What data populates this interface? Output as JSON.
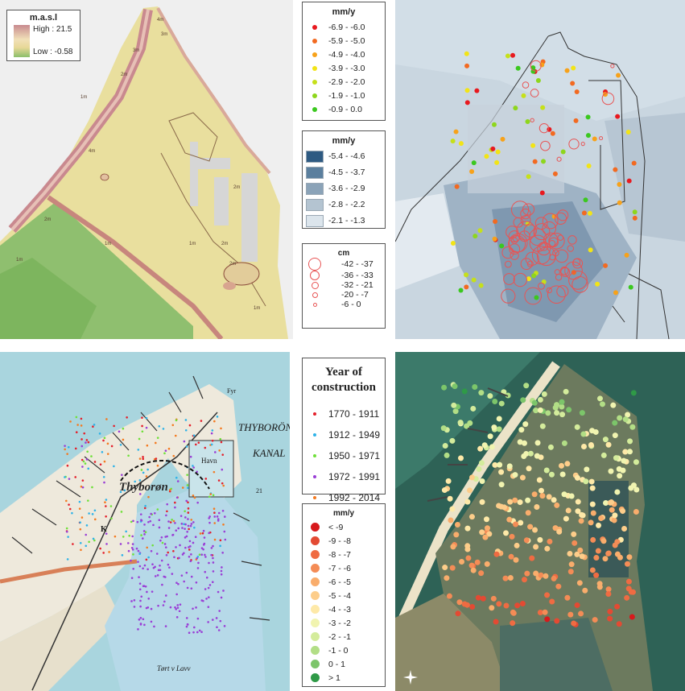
{
  "elevation_legend": {
    "title": "m.a.s.l",
    "high": "High : 21.5",
    "low": "Low : -0.58"
  },
  "velocity_points_legend": {
    "title": "mm/y",
    "items": [
      {
        "label": "-6.9 - -6.0",
        "color": "#e8191f"
      },
      {
        "label": "-5.9 - -5.0",
        "color": "#f26a21"
      },
      {
        "label": "-4.9 - -4.0",
        "color": "#f7a21a"
      },
      {
        "label": "-3.9 - -3.0",
        "color": "#f2e416"
      },
      {
        "label": "-2.9 - -2.0",
        "color": "#c6e01a"
      },
      {
        "label": "-1.9 - -1.0",
        "color": "#8ed61c"
      },
      {
        "label": "-0.9 - 0.0",
        "color": "#3bc81f"
      }
    ]
  },
  "velocity_surface_legend": {
    "title": "mm/y",
    "items": [
      {
        "label": "-5.4 - -4.6",
        "color": "#2e5a82"
      },
      {
        "label": "-4.5 - -3.7",
        "color": "#5b7f9e"
      },
      {
        "label": "-3.6 - -2.9",
        "color": "#8ba3b8"
      },
      {
        "label": "-2.8 - -2.2",
        "color": "#b4c4d1"
      },
      {
        "label": "-2.1 - -1.3",
        "color": "#dce5ec"
      }
    ]
  },
  "settlement_legend": {
    "title": "cm",
    "items": [
      {
        "label": "-42 - -37"
      },
      {
        "label": "-36 - -33"
      },
      {
        "label": "-32 - -21"
      },
      {
        "label": "-20 - -7"
      },
      {
        "label": "-6 - 0"
      }
    ]
  },
  "construction_legend": {
    "title": "Year of construction",
    "items": [
      {
        "label": "1770 - 1911",
        "color": "#e4202b"
      },
      {
        "label": "1912 - 1949",
        "color": "#2fb3e8"
      },
      {
        "label": "1950 - 1971",
        "color": "#6fe03a"
      },
      {
        "label": "1972 - 1991",
        "color": "#9a3fd6"
      },
      {
        "label": "1992 - 2014",
        "color": "#f47a20"
      }
    ]
  },
  "building_velocity_legend": {
    "title": "mm/y",
    "items": [
      {
        "label": "< -9",
        "color": "#d7191c"
      },
      {
        "label": "-9 - -8",
        "color": "#e34a33"
      },
      {
        "label": "-8 - -7",
        "color": "#ef6b42"
      },
      {
        "label": "-7 - -6",
        "color": "#f48c56"
      },
      {
        "label": "-6 - -5",
        "color": "#f9ad6c"
      },
      {
        "label": "-5 - -4",
        "color": "#fdcd8a"
      },
      {
        "label": "-4 - -3",
        "color": "#fee9a8"
      },
      {
        "label": "-3 - -2",
        "color": "#f1f4b0"
      },
      {
        "label": "-2 - -1",
        "color": "#d4ec9c"
      },
      {
        "label": "-1 - 0",
        "color": "#b2de86"
      },
      {
        "label": "0 - 1",
        "color": "#7cc56a"
      },
      {
        "label": "> 1",
        "color": "#2f9a47"
      }
    ]
  },
  "historic_map_labels": {
    "town": "Thyborøn",
    "canal_1": "THYBORÖN",
    "canal_2": "KANAL",
    "harbor": "Havn",
    "lagoon": "Tørt v Lavv",
    "k": "K",
    "fyr": "Fyr",
    "nr21": "21"
  },
  "contour_labels": [
    "1m",
    "2m",
    "3m",
    "4m",
    "2m",
    "1m",
    "2m",
    "1m",
    "2m",
    "1m",
    "2m",
    "3m",
    "1m",
    "4m"
  ],
  "colors": {
    "elev_high": "#c88a8f",
    "elev_mid": "#e8d898",
    "elev_low": "#8bbf6a",
    "sea_historic": "#a9d5de",
    "aerial_sea": "#2b5f55"
  }
}
